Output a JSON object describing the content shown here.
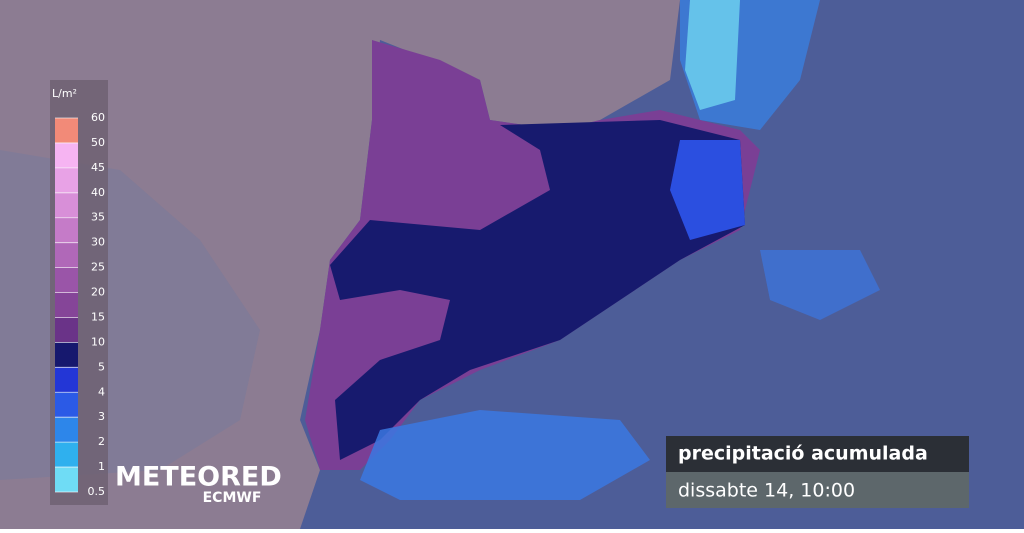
{
  "legend": {
    "unit": "L/m²",
    "ticks": [
      "60",
      "50",
      "45",
      "40",
      "35",
      "30",
      "25",
      "20",
      "15",
      "10",
      "5",
      "4",
      "3",
      "2",
      "1",
      "0.5"
    ],
    "colors": [
      "#f28a78",
      "#f6b4f2",
      "#e8a2e6",
      "#d88fd8",
      "#c57bc8",
      "#b068b8",
      "#9a55a8",
      "#854598",
      "#6a3388",
      "#16186e",
      "#2336d6",
      "#2b5ae6",
      "#2d86ea",
      "#2fb0ee",
      "#6fdcf5"
    ]
  },
  "brand": {
    "name": "METEORED",
    "partner": "ECMWF"
  },
  "caption": {
    "title": "precipitació acumulada",
    "date": "dissabte 14, 10:00"
  }
}
